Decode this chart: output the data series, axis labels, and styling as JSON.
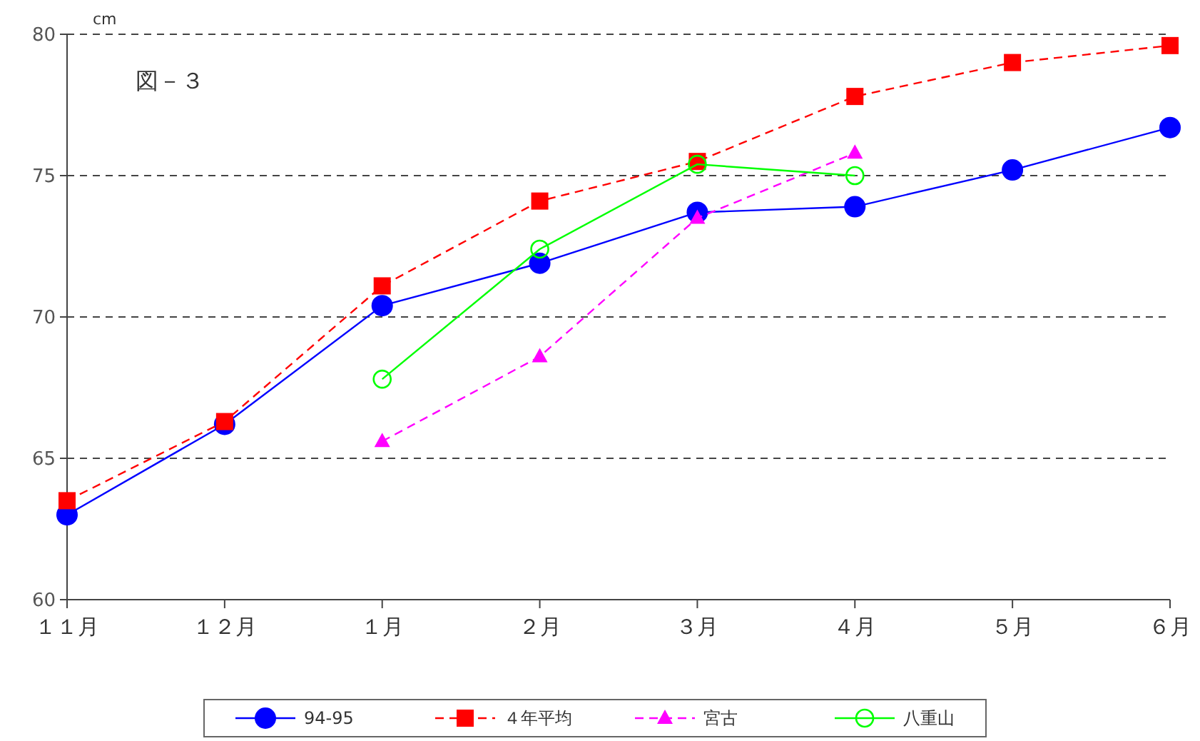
{
  "chart_data": {
    "type": "line",
    "ylabel": "cm",
    "annotations": [
      "図－３"
    ],
    "categories": [
      "１１月",
      "１２月",
      "１月",
      "２月",
      "３月",
      "４月",
      "５月",
      "６月"
    ],
    "ylim": [
      60,
      80
    ],
    "yticks": [
      60,
      65,
      70,
      75,
      80
    ],
    "grid": "y",
    "legend": "bottom",
    "series": [
      {
        "name": "94-95",
        "color": "#0000ff",
        "marker": "circle",
        "line_style": "solid",
        "values": [
          63.0,
          66.2,
          70.4,
          71.9,
          73.7,
          73.9,
          75.2,
          76.7
        ]
      },
      {
        "name": "４年平均",
        "color": "#ff0000",
        "marker": "square",
        "line_style": "dashed",
        "values": [
          63.5,
          66.3,
          71.1,
          74.1,
          75.5,
          77.8,
          79.0,
          79.6
        ]
      },
      {
        "name": "宮古",
        "color": "#ff00ff",
        "marker": "triangle",
        "line_style": "dashed",
        "values": [
          null,
          null,
          65.6,
          68.6,
          73.5,
          75.8,
          null,
          null
        ]
      },
      {
        "name": "八重山",
        "color": "#00ff00",
        "marker": "open circle",
        "line_style": "solid",
        "values": [
          null,
          null,
          67.8,
          72.4,
          75.4,
          75.0,
          null,
          null
        ]
      }
    ]
  }
}
